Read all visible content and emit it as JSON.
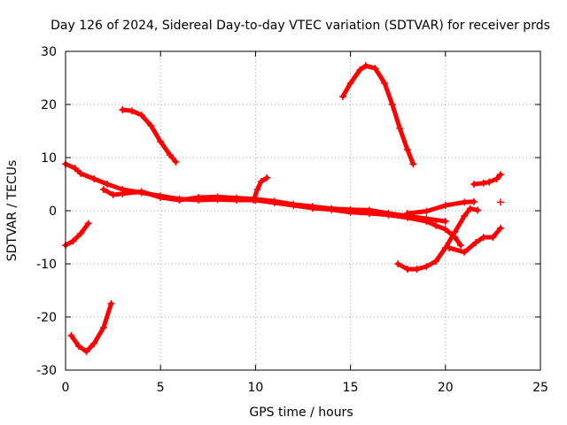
{
  "chart_data": {
    "type": "scatter",
    "title": "Day 126 of 2024, Sidereal Day-to-day VTEC variation (SDTVAR) for receiver prds",
    "xlabel": "GPS time / hours",
    "ylabel": "SDTVAR / TECUs",
    "xlim": [
      0,
      25
    ],
    "ylim": [
      -30,
      30
    ],
    "xticks": [
      0,
      5,
      10,
      15,
      20,
      25
    ],
    "yticks": [
      -30,
      -20,
      -10,
      0,
      10,
      20,
      30
    ],
    "xtick_labels": [
      "0",
      "5",
      "10",
      "15",
      "20",
      "25"
    ],
    "ytick_labels": [
      "-30",
      "-20",
      "-10",
      "0",
      "10",
      "20",
      "30"
    ],
    "grid": true,
    "marker": "plus",
    "color": "#ff0000",
    "series": [
      {
        "name": "main-track-1",
        "points": [
          [
            0,
            8.8
          ],
          [
            0.5,
            8
          ],
          [
            0.8,
            7
          ],
          [
            1.5,
            6
          ],
          [
            2.2,
            5
          ],
          [
            3,
            4
          ],
          [
            4,
            3.4
          ],
          [
            5,
            2.8
          ],
          [
            6,
            2.2
          ],
          [
            7,
            2
          ],
          [
            8,
            2.1
          ],
          [
            9,
            2
          ],
          [
            10,
            2
          ],
          [
            11,
            1.5
          ],
          [
            12,
            1
          ],
          [
            13,
            0.5
          ],
          [
            14,
            0.2
          ],
          [
            15,
            -0.3
          ],
          [
            16,
            -0.5
          ],
          [
            17,
            -0.8
          ],
          [
            18,
            -1.3
          ],
          [
            19,
            -2
          ],
          [
            19.5,
            -2.8
          ],
          [
            20,
            -3.5
          ],
          [
            20.5,
            -5
          ],
          [
            20.8,
            -6.5
          ]
        ]
      },
      {
        "name": "main-track-2",
        "points": [
          [
            2,
            4
          ],
          [
            2.5,
            3
          ],
          [
            3,
            3.2
          ],
          [
            4,
            3.6
          ],
          [
            5,
            2.5
          ],
          [
            6,
            2
          ],
          [
            7,
            2.5
          ],
          [
            8,
            2.6
          ],
          [
            9,
            2.4
          ],
          [
            10,
            2.2
          ],
          [
            11,
            1.8
          ],
          [
            12,
            1.2
          ],
          [
            13,
            0.8
          ],
          [
            14,
            0.4
          ],
          [
            15,
            0.2
          ],
          [
            16,
            0.1
          ],
          [
            17,
            -0.5
          ],
          [
            18,
            -1
          ],
          [
            19,
            -1.5
          ],
          [
            20,
            -2
          ]
        ]
      },
      {
        "name": "rising-track-5",
        "points": [
          [
            9.9,
            2
          ],
          [
            10.1,
            4
          ],
          [
            10.3,
            5.5
          ],
          [
            10.6,
            6.2
          ]
        ]
      },
      {
        "name": "high-arc-19",
        "points": [
          [
            3,
            19
          ],
          [
            3.5,
            18.8
          ],
          [
            4,
            18
          ],
          [
            4.5,
            16
          ],
          [
            5,
            13
          ],
          [
            5.5,
            10.5
          ],
          [
            5.8,
            9.2
          ]
        ]
      },
      {
        "name": "high-arc-27",
        "points": [
          [
            14.6,
            21.5
          ],
          [
            15,
            24
          ],
          [
            15.5,
            26.5
          ],
          [
            15.8,
            27.3
          ],
          [
            16.3,
            26.8
          ],
          [
            16.8,
            24
          ],
          [
            17.2,
            20
          ],
          [
            17.6,
            15.5
          ],
          [
            18,
            11.5
          ],
          [
            18.3,
            8.8
          ]
        ]
      },
      {
        "name": "low-track-neg6",
        "points": [
          [
            0,
            -6.5
          ],
          [
            0.4,
            -5.7
          ],
          [
            0.8,
            -4.3
          ],
          [
            1.2,
            -2.4
          ]
        ]
      },
      {
        "name": "low-arc-neg26",
        "points": [
          [
            0.3,
            -23.5
          ],
          [
            0.7,
            -25.5
          ],
          [
            1.1,
            -26.5
          ],
          [
            1.5,
            -25
          ],
          [
            2,
            -22
          ],
          [
            2.4,
            -17.5
          ]
        ]
      },
      {
        "name": "dip-track-neg11",
        "points": [
          [
            17.5,
            -10
          ],
          [
            18,
            -11
          ],
          [
            18.5,
            -11
          ],
          [
            19,
            -10.5
          ],
          [
            19.5,
            -9.5
          ],
          [
            20,
            -7
          ],
          [
            20.5,
            -4
          ],
          [
            21,
            -1
          ],
          [
            21.3,
            0.4
          ],
          [
            21.7,
            0.1
          ]
        ]
      },
      {
        "name": "late-track-1",
        "points": [
          [
            18,
            -0.5
          ],
          [
            19,
            -0.1
          ],
          [
            20,
            1
          ],
          [
            21,
            1.6
          ],
          [
            21.5,
            1.7
          ]
        ]
      },
      {
        "name": "late-track-neg7",
        "points": [
          [
            20.2,
            -7
          ],
          [
            21,
            -7.8
          ],
          [
            21.6,
            -6
          ],
          [
            22,
            -5
          ],
          [
            22.5,
            -5
          ],
          [
            22.9,
            -3.3
          ]
        ]
      },
      {
        "name": "late-track-6",
        "points": [
          [
            21.5,
            5
          ],
          [
            22,
            5.2
          ],
          [
            22.3,
            5.4
          ],
          [
            22.7,
            6
          ],
          [
            22.9,
            6.8
          ]
        ]
      },
      {
        "name": "isolated-point",
        "points": [
          [
            22.9,
            1.6
          ]
        ]
      }
    ]
  }
}
